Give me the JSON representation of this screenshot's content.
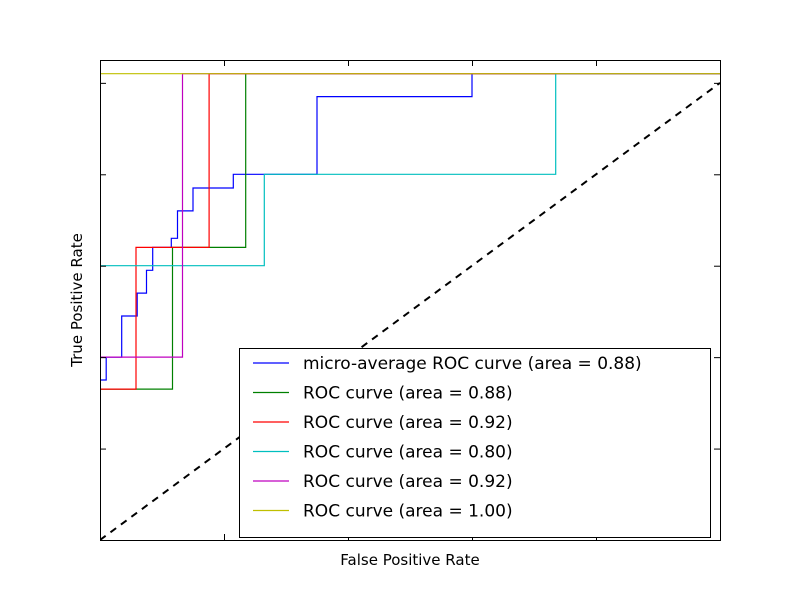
{
  "chart_data": {
    "type": "line",
    "title": "",
    "xlabel": "False Positive Rate",
    "ylabel": "True Positive Rate",
    "xlim": [
      0.0,
      1.0
    ],
    "ylim": [
      0.0,
      1.05
    ],
    "xticks": [
      0.0,
      0.2,
      0.4,
      0.6,
      0.8,
      1.0
    ],
    "yticks": [
      0.0,
      0.2,
      0.4,
      0.6,
      0.8,
      1.0
    ],
    "tick_labels_visible": false,
    "grid": false,
    "legend_position": "lower-right",
    "series": [
      {
        "name": "micro-average ROC curve (area = 0.88)",
        "color": "#0000ff",
        "style": "solid",
        "x": [
          0.0,
          0.0,
          0.01,
          0.01,
          0.035,
          0.035,
          0.06,
          0.06,
          0.075,
          0.075,
          0.085,
          0.085,
          0.115,
          0.115,
          0.125,
          0.125,
          0.15,
          0.15,
          0.215,
          0.215,
          0.35,
          0.35,
          0.6,
          0.6,
          1.0
        ],
        "y": [
          0.34,
          0.35,
          0.35,
          0.4,
          0.4,
          0.49,
          0.49,
          0.54,
          0.54,
          0.59,
          0.59,
          0.64,
          0.64,
          0.66,
          0.66,
          0.72,
          0.72,
          0.77,
          0.77,
          0.8,
          0.8,
          0.97,
          0.97,
          1.02,
          1.02
        ]
      },
      {
        "name": "ROC curve (area = 0.88)",
        "color": "#008000",
        "style": "solid",
        "x": [
          0.0,
          0.117,
          0.117,
          0.235,
          0.235,
          1.0
        ],
        "y": [
          0.33,
          0.33,
          0.64,
          0.64,
          1.02,
          1.02
        ]
      },
      {
        "name": "ROC curve (area = 0.92)",
        "color": "#ff0000",
        "style": "solid",
        "x": [
          0.0,
          0.058,
          0.058,
          0.176,
          0.176,
          1.0
        ],
        "y": [
          0.33,
          0.33,
          0.64,
          0.64,
          1.02,
          1.02
        ]
      },
      {
        "name": "ROC curve (area = 0.80)",
        "color": "#00bfbf",
        "style": "solid",
        "x": [
          0.0,
          0.265,
          0.265,
          0.735,
          0.735,
          1.0
        ],
        "y": [
          0.6,
          0.6,
          0.8,
          0.8,
          1.02,
          1.02
        ]
      },
      {
        "name": "ROC curve (area = 0.92)",
        "color": "#bf00bf",
        "style": "solid",
        "x": [
          0.0,
          0.133,
          0.133,
          1.0
        ],
        "y": [
          0.4,
          0.4,
          1.02,
          1.02
        ]
      },
      {
        "name": "ROC curve (area = 1.00)",
        "color": "#bfbf00",
        "style": "solid",
        "x": [
          0.0,
          1.0
        ],
        "y": [
          1.02,
          1.02
        ]
      }
    ],
    "reference_line": {
      "color": "#000000",
      "style": "dashed",
      "x": [
        0.0,
        1.0
      ],
      "y": [
        0.0,
        1.0
      ]
    }
  }
}
